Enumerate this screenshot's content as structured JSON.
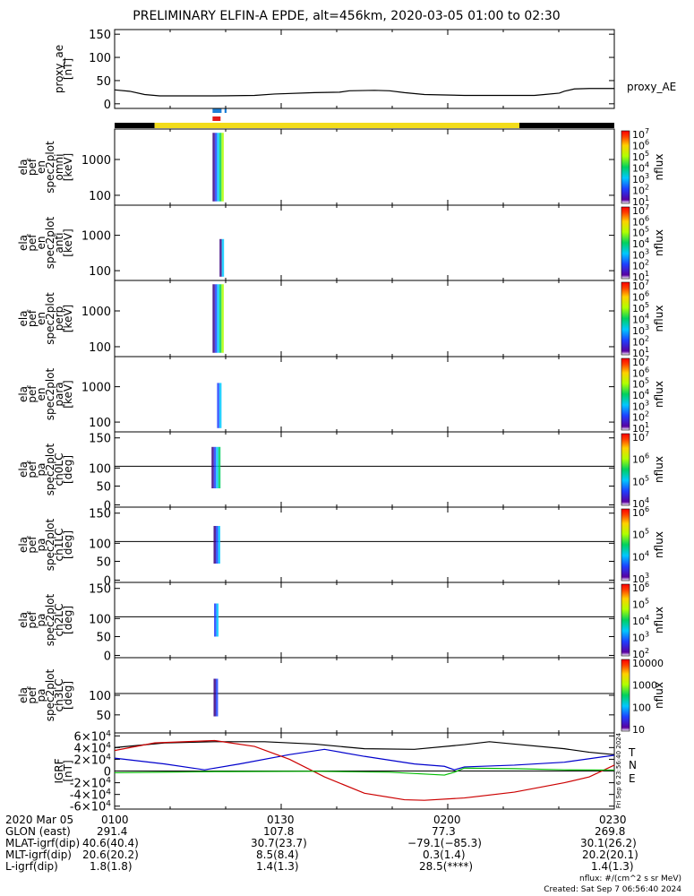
{
  "title": "PRELIMINARY ELFIN-A EPDE, alt=456km, 2020-03-05 01:00 to 02:30",
  "chart_data": {
    "type": "line",
    "time_range": [
      "2020-03-05 01:00",
      "2020-03-05 02:30"
    ],
    "x_ticks": [
      "0100",
      "0130",
      "0200",
      "0230"
    ],
    "panels": [
      {
        "name": "proxy_ae",
        "ylabel": [
          "proxy_ae",
          "[nT]"
        ],
        "yticks": [
          "150",
          "100",
          "50",
          "0"
        ],
        "ylim": [
          -10,
          160
        ],
        "series": [
          {
            "name": "proxy_AE",
            "color": "#000000",
            "points": [
              [
                0,
                30
              ],
              [
                3,
                27
              ],
              [
                6,
                20
              ],
              [
                9,
                17
              ],
              [
                12,
                17
              ],
              [
                20,
                17
              ],
              [
                28,
                18
              ],
              [
                32,
                21
              ],
              [
                40,
                24
              ],
              [
                45,
                25
              ],
              [
                47,
                28
              ],
              [
                52,
                29
              ],
              [
                55,
                28
              ],
              [
                58,
                24
              ],
              [
                62,
                20
              ],
              [
                70,
                18
              ],
              [
                80,
                18
              ],
              [
                84,
                18
              ],
              [
                86,
                20
              ],
              [
                89,
                23
              ],
              [
                90,
                27
              ],
              [
                92,
                32
              ],
              [
                95,
                33
              ],
              [
                100,
                33
              ]
            ]
          }
        ]
      },
      {
        "name": "omni",
        "ylabel": [
          "ela",
          "pef",
          "en",
          "spec2plot",
          "omni",
          "[keV]"
        ],
        "yticks": [
          "1000",
          "100"
        ],
        "colorbar": {
          "label": "nflux",
          "ticks": [
            "10^7",
            "10^6",
            "10^5",
            "10^4",
            "10^3",
            "10^2",
            "10^1"
          ]
        }
      },
      {
        "name": "anti",
        "ylabel": [
          "ela",
          "pef",
          "en",
          "spec2plot",
          "anti",
          "[keV]"
        ],
        "yticks": [
          "1000",
          "100"
        ],
        "colorbar": {
          "label": "nflux",
          "ticks": [
            "10^7",
            "10^6",
            "10^5",
            "10^4",
            "10^3",
            "10^2",
            "10^1"
          ]
        }
      },
      {
        "name": "perp",
        "ylabel": [
          "ela",
          "pef",
          "en",
          "spec2plot",
          "perp",
          "[keV]"
        ],
        "yticks": [
          "1000",
          "100"
        ],
        "colorbar": {
          "label": "nflux",
          "ticks": [
            "10^7",
            "10^6",
            "10^5",
            "10^4",
            "10^3",
            "10^2",
            "10^1"
          ]
        }
      },
      {
        "name": "para",
        "ylabel": [
          "ela",
          "pef",
          "en",
          "spec2plot",
          "para",
          "[keV]"
        ],
        "yticks": [
          "1000",
          "100"
        ],
        "colorbar": {
          "label": "nflux",
          "ticks": [
            "10^7",
            "10^6",
            "10^5",
            "10^4",
            "10^3",
            "10^2",
            "10^1"
          ]
        }
      },
      {
        "name": "ch0LC",
        "ylabel": [
          "ela",
          "pef",
          "pa",
          "spec2plot",
          "ch0LC",
          "[deg]"
        ],
        "yticks": [
          "150",
          "100",
          "50",
          "0"
        ],
        "colorbar": {
          "label": "nflux",
          "ticks": [
            "10^7",
            "10^6",
            "10^5",
            "10^4"
          ]
        }
      },
      {
        "name": "ch1LC",
        "ylabel": [
          "ela",
          "pef",
          "pa",
          "spec2plot",
          "ch1LC",
          "[deg]"
        ],
        "yticks": [
          "150",
          "100",
          "50",
          "0"
        ],
        "colorbar": {
          "label": "nflux",
          "ticks": [
            "10^6",
            "10^5",
            "10^4",
            "10^3"
          ]
        }
      },
      {
        "name": "ch2LC",
        "ylabel": [
          "ela",
          "pef",
          "pa",
          "spec2plot",
          "ch2LC",
          "[deg]"
        ],
        "yticks": [
          "150",
          "100",
          "50",
          "0"
        ],
        "colorbar": {
          "label": "nflux",
          "ticks": [
            "10^6",
            "10^5",
            "10^4",
            "10^3",
            "10^2"
          ]
        }
      },
      {
        "name": "ch3LC",
        "ylabel": [
          "ela",
          "pef",
          "pa",
          "spec2plot",
          "ch3LC",
          "[deg]"
        ],
        "yticks": [
          "100",
          "50"
        ],
        "colorbar": {
          "label": "nflux",
          "ticks": [
            "10000",
            "1000",
            "100",
            "10"
          ]
        }
      },
      {
        "name": "IGRF",
        "ylabel": [
          "IGRF",
          "[nT]"
        ],
        "yticks": [
          "6×10^4",
          "4×10^4",
          "2×10^4",
          "0",
          "-2×10^4",
          "-4×10^4",
          "-6×10^4"
        ],
        "ylim": [
          -65000,
          65000
        ],
        "legend": [
          "T",
          "N",
          "E"
        ],
        "series": [
          {
            "name": "T",
            "color": "#000000",
            "points": [
              [
                0,
                40000
              ],
              [
                10,
                48000
              ],
              [
                20,
                50000
              ],
              [
                30,
                50000
              ],
              [
                40,
                46000
              ],
              [
                50,
                38000
              ],
              [
                60,
                37000
              ],
              [
                70,
                45000
              ],
              [
                75,
                50000
              ],
              [
                80,
                46000
              ],
              [
                90,
                38000
              ],
              [
                95,
                32000
              ],
              [
                100,
                28000
              ]
            ]
          },
          {
            "name": "N",
            "color": "#0000cc",
            "points": [
              [
                0,
                22000
              ],
              [
                10,
                12000
              ],
              [
                18,
                2000
              ],
              [
                25,
                12000
              ],
              [
                35,
                28000
              ],
              [
                42,
                37000
              ],
              [
                50,
                25000
              ],
              [
                60,
                12000
              ],
              [
                66,
                8000
              ],
              [
                68,
                2000
              ],
              [
                70,
                7000
              ],
              [
                80,
                10000
              ],
              [
                90,
                15000
              ],
              [
                100,
                27000
              ]
            ]
          },
          {
            "name": "E",
            "color": "#cc0000",
            "points": [
              [
                0,
                35000
              ],
              [
                8,
                48000
              ],
              [
                20,
                52000
              ],
              [
                28,
                42000
              ],
              [
                35,
                20000
              ],
              [
                42,
                -10000
              ],
              [
                50,
                -38000
              ],
              [
                58,
                -49000
              ],
              [
                62,
                -50000
              ],
              [
                70,
                -46000
              ],
              [
                80,
                -36000
              ],
              [
                90,
                -20000
              ],
              [
                95,
                -10000
              ],
              [
                100,
                10000
              ]
            ]
          },
          {
            "name": "green",
            "color": "#00bb00",
            "points": [
              [
                0,
                -3000
              ],
              [
                20,
                -1000
              ],
              [
                40,
                -500
              ],
              [
                55,
                -2000
              ],
              [
                66,
                -7000
              ],
              [
                68,
                -2000
              ],
              [
                70,
                5000
              ],
              [
                80,
                4000
              ],
              [
                90,
                2000
              ],
              [
                100,
                1500
              ]
            ]
          }
        ]
      }
    ]
  },
  "status_bar": {
    "segments": [
      {
        "from": 0,
        "to": 8,
        "color": "#000000"
      },
      {
        "from": 8,
        "to": 81,
        "color": "#f2dc1b"
      },
      {
        "from": 81,
        "to": 100,
        "color": "#000000"
      }
    ],
    "markers": [
      {
        "at": 19.6,
        "width": 1.8,
        "row": 0,
        "color": "#1e7fd6"
      },
      {
        "at": 22.0,
        "width": 0.4,
        "row": 0,
        "color": "#1e7fd6"
      },
      {
        "at": 19.6,
        "width": 1.6,
        "row": 1,
        "color": "#e21b1b"
      }
    ]
  },
  "ephemeris": {
    "rows": [
      {
        "label": "2020 Mar 05",
        "values": [
          "0100",
          "0130",
          "0200",
          "0230"
        ]
      },
      {
        "label": "GLON (east)",
        "values": [
          "291.4",
          "107.8",
          "77.3",
          "269.8"
        ]
      },
      {
        "label": "MLAT-igrf(dip)",
        "values": [
          "40.6(40.4)",
          "30.7(23.7)",
          "−79.1(−85.3)",
          "30.1(26.2)"
        ]
      },
      {
        "label": "MLT-igrf(dip)",
        "values": [
          "20.6(20.2)",
          "8.5(8.4)",
          "0.3(1.4)",
          "20.2(20.1)"
        ]
      },
      {
        "label": "L-igrf(dip)",
        "values": [
          "1.8(1.8)",
          "1.4(1.3)",
          "28.5(****)",
          "1.4(1.3)"
        ]
      }
    ]
  },
  "footer": {
    "units": "nflux: #/(cm^2 s sr MeV)",
    "created": "Created: Sat Sep  7 06:56:40 2024",
    "stamp": "Fri Sep  6 23:56:40 2024"
  }
}
